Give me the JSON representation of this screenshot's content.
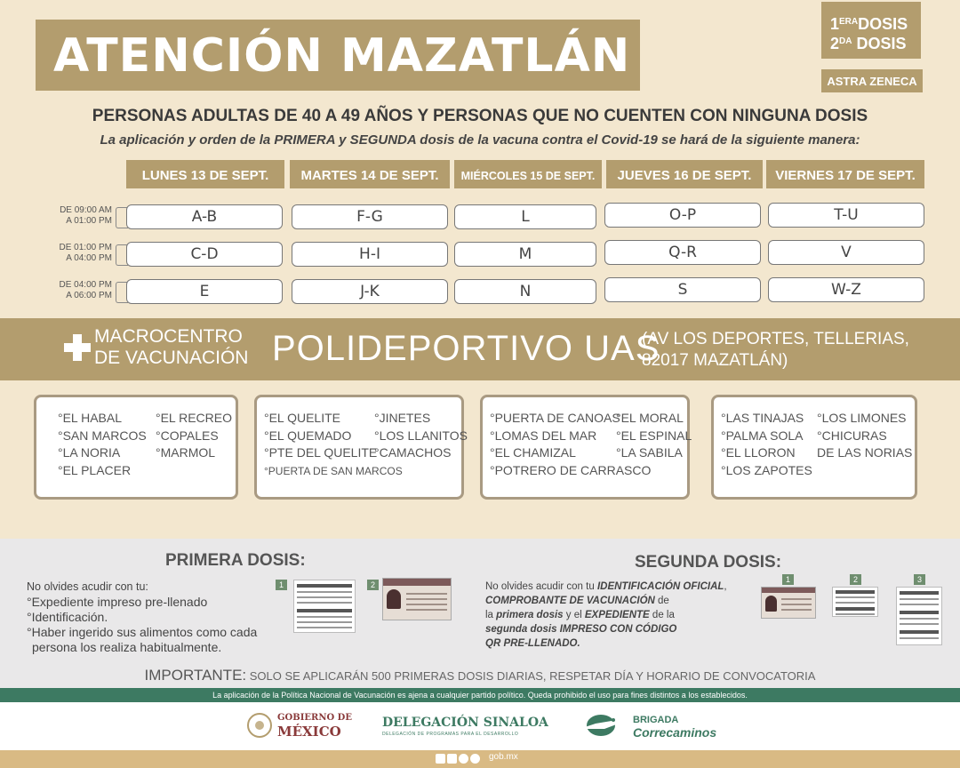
{
  "header": {
    "title": "ATENCIÓN MAZATLÁN",
    "dose1_prefix": "1",
    "dose1_sup": "ERA",
    "dose1_word": "DOSIS",
    "dose2_prefix": "2",
    "dose2_sup": "DA",
    "dose2_word": "DOSIS",
    "vaccine": "ASTRA ZENECA"
  },
  "subtitle": "PERSONAS ADULTAS DE 40 A 49 AÑOS Y PERSONAS QUE NO CUENTEN CON NINGUNA DOSIS",
  "subtitle2": "La aplicación y orden de la PRIMERA y SEGUNDA dosis de la vacuna contra el Covid-19 se hará de la siguiente manera:",
  "schedule": {
    "days": [
      "LUNES 13 DE SEPT.",
      "MARTES 14 DE SEPT.",
      "MIÉRCOLES 15 DE SEPT.",
      "JUEVES 16 DE SEPT.",
      "VIERNES 17 DE SEPT."
    ],
    "times": [
      {
        "start": "DE 09:00 AM",
        "end": "A 01:00 PM"
      },
      {
        "start": "DE 01:00 PM",
        "end": "A 04:00 PM"
      },
      {
        "start": "DE 04:00 PM",
        "end": "A 06:00 PM"
      }
    ],
    "rows": [
      [
        "A-B",
        "F-G",
        "L",
        "O-P",
        "T-U"
      ],
      [
        "C-D",
        "H-I",
        "M",
        "Q-R",
        "V"
      ],
      [
        "E",
        "J-K",
        "N",
        "S",
        "W-Z"
      ]
    ]
  },
  "location": {
    "macro_line1": "MACROCENTRO",
    "macro_line2": "DE VACUNACIÓN",
    "venue": "POLIDEPORTIVO UAS",
    "address_line1": "(AV LOS DEPORTES, TELLERIAS,",
    "address_line2": "82017 MAZATLÁN)"
  },
  "communities": [
    {
      "col1": [
        "°EL HABAL",
        "°SAN MARCOS",
        "°LA NORIA",
        "°EL PLACER"
      ],
      "col2": [
        "°EL RECREO",
        "°COPALES",
        "°MARMOL"
      ]
    },
    {
      "col1": [
        "°EL QUELITE",
        "°EL QUEMADO",
        "°PTE DEL QUELITE"
      ],
      "col2": [
        "°JINETES",
        "°LOS LLANITOS",
        "°CAMACHOS"
      ],
      "extra": "°PUERTA DE SAN MARCOS"
    },
    {
      "col1": [
        "°PUERTA DE CANOAS",
        "°LOMAS DEL MAR",
        "°EL CHAMIZAL",
        "°POTRERO DE CARRASCO"
      ],
      "col2": [
        "°EL MORAL",
        "°EL ESPINAL",
        "°LA SABILA"
      ]
    },
    {
      "col1": [
        "°LAS TINAJAS",
        "°PALMA SOLA",
        "°EL LLORON",
        "°LOS ZAPOTES"
      ],
      "col2": [
        "°LOS LIMONES",
        "°CHICURAS",
        "DE LAS NORIAS"
      ]
    }
  ],
  "primera": {
    "title": "PRIMERA DOSIS:",
    "lines": [
      "No olvides acudir con tu:",
      "°Expediente impreso pre-llenado",
      "°Identificación.",
      "°Haber ingerido sus alimentos como cada",
      "persona los realiza habitualmente."
    ],
    "tags": [
      "1",
      "2"
    ]
  },
  "segunda": {
    "title": "SEGUNDA DOSIS:",
    "t1": "No olvides acudir con tu ",
    "t2": "IDENTIFICACIÓN OFICIAL",
    "t3": ",",
    "t4": "COMPROBANTE DE VACUNACIÓN",
    "t5": " de",
    "t6": "la ",
    "t7": "primera dosis",
    "t8": " y el ",
    "t9": "EXPEDIENTE",
    "t10": " de la",
    "t11": "segunda dosis IMPRESO CON CÓDIGO",
    "t12": "QR PRE-LLENADO.",
    "tags": [
      "1",
      "2",
      "3"
    ]
  },
  "important": {
    "label": "IMPORTANTE:",
    "text": " SOLO SE APLICARÁN 500 PRIMERAS DOSIS DIARIAS, RESPETAR DÍA Y HORARIO DE CONVOCATORIA"
  },
  "disclaimer": "La aplicación de la Política Nacional de Vacunación es ajena a cualquier partido político. Queda prohibido el uso para fines distintos a los establecidos.",
  "footer": {
    "gob_line1": "GOBIERNO DE",
    "gob_line2": "MÉXICO",
    "delegacion": "DELEGACIÓN SINALOA",
    "delegacion_sub": "DELEGACIÓN DE PROGRAMAS PARA EL DESARROLLO",
    "brigada": "BRIGADA",
    "correcaminos": "Correcaminos",
    "site": "gob.mx"
  },
  "colors": {
    "accent": "#b39d6e",
    "background": "#f3e7cf",
    "green": "#3d7a62",
    "tan": "#d9ba84"
  }
}
